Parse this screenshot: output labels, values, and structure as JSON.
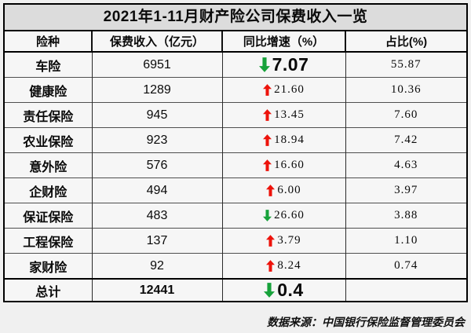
{
  "title": "2021年1-11月财产险公司保费收入一览",
  "colors": {
    "up": "#ed130b",
    "down": "#17a23b"
  },
  "footer": {
    "source": "数据来源：中国银行保险监督管理委员会"
  },
  "chart_data": {
    "type": "table",
    "title": "2021年1-11月财产险公司保费收入一览",
    "columns": [
      "险种",
      "保费收入（亿元）",
      "同比增速（%）",
      "占比(%)"
    ],
    "rows": [
      {
        "label": "车险",
        "income": "6951",
        "direction": "down",
        "growth": "7.07",
        "share": "55.87",
        "emphasis": true,
        "total": false
      },
      {
        "label": "健康险",
        "income": "1289",
        "direction": "up",
        "growth": "21.60",
        "share": "10.36",
        "emphasis": false,
        "total": false
      },
      {
        "label": "责任保险",
        "income": "945",
        "direction": "up",
        "growth": "13.45",
        "share": "7.60",
        "emphasis": false,
        "total": false
      },
      {
        "label": "农业保险",
        "income": "923",
        "direction": "up",
        "growth": "18.94",
        "share": "7.42",
        "emphasis": false,
        "total": false
      },
      {
        "label": "意外险",
        "income": "576",
        "direction": "up",
        "growth": "16.60",
        "share": "4.63",
        "emphasis": false,
        "total": false
      },
      {
        "label": "企财险",
        "income": "494",
        "direction": "up",
        "growth": "6.00",
        "share": "3.97",
        "emphasis": false,
        "total": false
      },
      {
        "label": "保证保险",
        "income": "483",
        "direction": "down",
        "growth": "26.60",
        "share": "3.88",
        "emphasis": false,
        "total": false
      },
      {
        "label": "工程保险",
        "income": "137",
        "direction": "up",
        "growth": "3.79",
        "share": "1.10",
        "emphasis": false,
        "total": false
      },
      {
        "label": "家财险",
        "income": "92",
        "direction": "up",
        "growth": "8.24",
        "share": "0.74",
        "emphasis": false,
        "total": false
      },
      {
        "label": "总计",
        "income": "12441",
        "direction": "down",
        "growth": "0.4",
        "share": "",
        "emphasis": true,
        "total": true
      }
    ]
  }
}
